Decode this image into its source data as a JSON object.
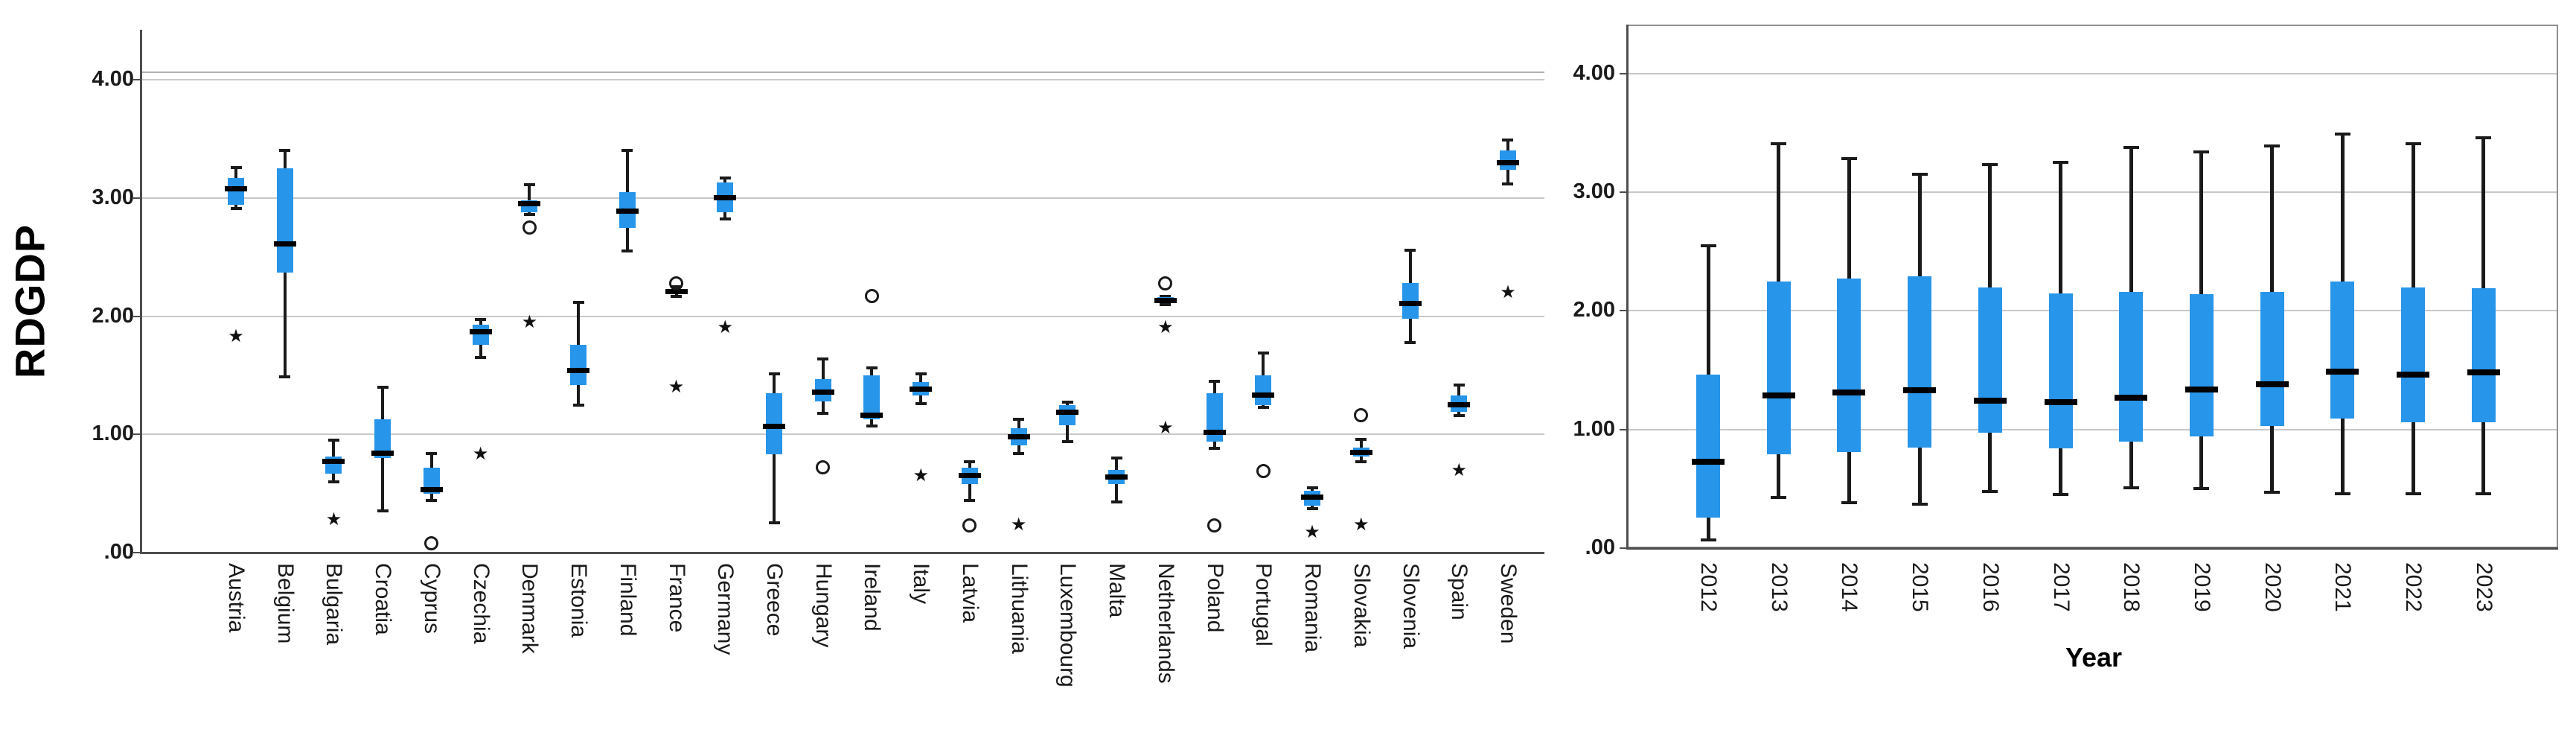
{
  "page": {
    "background": "#ffffff"
  },
  "colors": {
    "box_fill": "#2795e9",
    "median": "#000000",
    "whisker": "#1a1a1a",
    "gridline": "#c8c8c8",
    "axis": "#4d4d4d",
    "frame": "#909090",
    "text": "#000000"
  },
  "markers": {
    "outlier_icon": "circle-outline-icon",
    "extreme_icon": "star-icon",
    "extreme_glyph": "★"
  },
  "chart_data": [
    {
      "type": "boxplot",
      "title": "",
      "xlabel": "",
      "ylabel": "RDGDP",
      "ylim": [
        0,
        4.45
      ],
      "grid": true,
      "legend": "none",
      "yticks": [
        {
          "v": 0.0,
          "label": ".00"
        },
        {
          "v": 1.0,
          "label": "1.00"
        },
        {
          "v": 2.0,
          "label": "2.00"
        },
        {
          "v": 3.0,
          "label": "3.00"
        },
        {
          "v": 4.0,
          "label": "4.00"
        }
      ],
      "categories": [
        "Austria",
        "Belgium",
        "Bulgaria",
        "Croatia",
        "Cyprus",
        "Czechia",
        "Denmark",
        "Estonia",
        "Finland",
        "France",
        "Germany",
        "Greece",
        "Hungary",
        "Ireland",
        "Italy",
        "Latvia",
        "Lithuania",
        "Luxembourg",
        "Malta",
        "Netherlands",
        "Poland",
        "Portugal",
        "Romania",
        "Slovakia",
        "Slovenia",
        "Spain",
        "Sweden"
      ],
      "boxes": [
        {
          "category": "Austria",
          "whisker_low": 2.91,
          "q1": 2.94,
          "median": 3.08,
          "q3": 3.17,
          "whisker_high": 3.26,
          "outliers": [],
          "extremes": [
            1.83
          ]
        },
        {
          "category": "Belgium",
          "whisker_low": 1.49,
          "q1": 2.37,
          "median": 2.61,
          "q3": 3.25,
          "whisker_high": 3.4,
          "outliers": [],
          "extremes": []
        },
        {
          "category": "Bulgaria",
          "whisker_low": 0.6,
          "q1": 0.67,
          "median": 0.77,
          "q3": 0.81,
          "whisker_high": 0.95,
          "outliers": [],
          "extremes": [
            0.28
          ]
        },
        {
          "category": "Croatia",
          "whisker_low": 0.35,
          "q1": 0.8,
          "median": 0.84,
          "q3": 1.13,
          "whisker_high": 1.4,
          "outliers": [],
          "extremes": []
        },
        {
          "category": "Cyprus",
          "whisker_low": 0.44,
          "q1": 0.5,
          "median": 0.53,
          "q3": 0.72,
          "whisker_high": 0.84,
          "outliers": [
            0.08
          ],
          "extremes": []
        },
        {
          "category": "Czechia",
          "whisker_low": 1.65,
          "q1": 1.76,
          "median": 1.87,
          "q3": 1.93,
          "whisker_high": 1.97,
          "outliers": [],
          "extremes": [
            0.83
          ]
        },
        {
          "category": "Denmark",
          "whisker_low": 2.86,
          "q1": 2.88,
          "median": 2.95,
          "q3": 2.98,
          "whisker_high": 3.11,
          "outliers": [
            2.75
          ],
          "extremes": [
            1.95
          ]
        },
        {
          "category": "Estonia",
          "whisker_low": 1.25,
          "q1": 1.42,
          "median": 1.54,
          "q3": 1.76,
          "whisker_high": 2.12,
          "outliers": [],
          "extremes": []
        },
        {
          "category": "Finland",
          "whisker_low": 2.55,
          "q1": 2.75,
          "median": 2.89,
          "q3": 3.05,
          "whisker_high": 3.4,
          "outliers": [],
          "extremes": []
        },
        {
          "category": "France",
          "whisker_low": 2.17,
          "q1": 2.19,
          "median": 2.21,
          "q3": 2.23,
          "whisker_high": 2.25,
          "outliers": [
            2.28
          ],
          "extremes": [
            1.4
          ]
        },
        {
          "category": "Germany",
          "whisker_low": 2.82,
          "q1": 2.88,
          "median": 3.0,
          "q3": 3.13,
          "whisker_high": 3.17,
          "outliers": [],
          "extremes": [
            1.9
          ]
        },
        {
          "category": "Greece",
          "whisker_low": 0.25,
          "q1": 0.83,
          "median": 1.07,
          "q3": 1.35,
          "whisker_high": 1.51,
          "outliers": [],
          "extremes": []
        },
        {
          "category": "Hungary",
          "whisker_low": 1.18,
          "q1": 1.28,
          "median": 1.36,
          "q3": 1.47,
          "whisker_high": 1.64,
          "outliers": [
            0.72
          ],
          "extremes": []
        },
        {
          "category": "Ireland",
          "whisker_low": 1.07,
          "q1": 1.13,
          "median": 1.16,
          "q3": 1.5,
          "whisker_high": 1.56,
          "outliers": [
            2.17
          ],
          "extremes": []
        },
        {
          "category": "Italy",
          "whisker_low": 1.26,
          "q1": 1.33,
          "median": 1.38,
          "q3": 1.44,
          "whisker_high": 1.51,
          "outliers": [],
          "extremes": [
            0.65
          ]
        },
        {
          "category": "Latvia",
          "whisker_low": 0.44,
          "q1": 0.58,
          "median": 0.65,
          "q3": 0.72,
          "whisker_high": 0.77,
          "outliers": [
            0.23
          ],
          "extremes": []
        },
        {
          "category": "Lithuania",
          "whisker_low": 0.84,
          "q1": 0.91,
          "median": 0.98,
          "q3": 1.05,
          "whisker_high": 1.13,
          "outliers": [],
          "extremes": [
            0.23
          ]
        },
        {
          "category": "Luxembourg",
          "whisker_low": 0.94,
          "q1": 1.08,
          "median": 1.19,
          "q3": 1.25,
          "whisker_high": 1.27,
          "outliers": [],
          "extremes": []
        },
        {
          "category": "Malta",
          "whisker_low": 0.43,
          "q1": 0.58,
          "median": 0.64,
          "q3": 0.7,
          "whisker_high": 0.8,
          "outliers": [],
          "extremes": []
        },
        {
          "category": "Netherlands",
          "whisker_low": 2.1,
          "q1": 2.11,
          "median": 2.13,
          "q3": 2.16,
          "whisker_high": 2.17,
          "outliers": [
            2.28
          ],
          "extremes": [
            1.9,
            1.05
          ]
        },
        {
          "category": "Poland",
          "whisker_low": 0.88,
          "q1": 0.94,
          "median": 1.02,
          "q3": 1.35,
          "whisker_high": 1.45,
          "outliers": [
            0.23
          ],
          "extremes": []
        },
        {
          "category": "Portugal",
          "whisker_low": 1.23,
          "q1": 1.25,
          "median": 1.33,
          "q3": 1.5,
          "whisker_high": 1.69,
          "outliers": [
            0.69
          ],
          "extremes": []
        },
        {
          "category": "Romania",
          "whisker_low": 0.37,
          "q1": 0.4,
          "median": 0.47,
          "q3": 0.52,
          "whisker_high": 0.55,
          "outliers": [],
          "extremes": [
            0.17
          ]
        },
        {
          "category": "Slovakia",
          "whisker_low": 0.77,
          "q1": 0.81,
          "median": 0.85,
          "q3": 0.89,
          "whisker_high": 0.96,
          "outliers": [
            1.16
          ],
          "extremes": [
            0.23
          ]
        },
        {
          "category": "Slovenia",
          "whisker_low": 1.78,
          "q1": 1.98,
          "median": 2.11,
          "q3": 2.28,
          "whisker_high": 2.56,
          "outliers": [],
          "extremes": []
        },
        {
          "category": "Spain",
          "whisker_low": 1.16,
          "q1": 1.19,
          "median": 1.25,
          "q3": 1.33,
          "whisker_high": 1.42,
          "outliers": [],
          "extremes": [
            0.69
          ]
        },
        {
          "category": "Sweden",
          "whisker_low": 3.12,
          "q1": 3.24,
          "median": 3.3,
          "q3": 3.4,
          "whisker_high": 3.49,
          "outliers": [],
          "extremes": [
            2.2
          ]
        }
      ]
    },
    {
      "type": "boxplot",
      "title": "",
      "xlabel": "Year",
      "ylabel": "",
      "ylim": [
        0,
        4.42
      ],
      "grid": true,
      "legend": "none",
      "yticks": [
        {
          "v": 0.0,
          "label": ".00"
        },
        {
          "v": 1.0,
          "label": "1.00"
        },
        {
          "v": 2.0,
          "label": "2.00"
        },
        {
          "v": 3.0,
          "label": "3.00"
        },
        {
          "v": 4.0,
          "label": "4.00"
        }
      ],
      "categories": [
        "2012",
        "2013",
        "2014",
        "2015",
        "2016",
        "2017",
        "2018",
        "2019",
        "2020",
        "2021",
        "2022",
        "2023"
      ],
      "boxes": [
        {
          "category": "2012",
          "whisker_low": 0.07,
          "q1": 0.26,
          "median": 0.73,
          "q3": 1.46,
          "whisker_high": 2.55,
          "outliers": [],
          "extremes": []
        },
        {
          "category": "2013",
          "whisker_low": 0.43,
          "q1": 0.79,
          "median": 1.29,
          "q3": 2.25,
          "whisker_high": 3.41,
          "outliers": [],
          "extremes": []
        },
        {
          "category": "2014",
          "whisker_low": 0.38,
          "q1": 0.81,
          "median": 1.31,
          "q3": 2.27,
          "whisker_high": 3.28,
          "outliers": [],
          "extremes": []
        },
        {
          "category": "2015",
          "whisker_low": 0.37,
          "q1": 0.85,
          "median": 1.33,
          "q3": 2.29,
          "whisker_high": 3.15,
          "outliers": [],
          "extremes": []
        },
        {
          "category": "2016",
          "whisker_low": 0.48,
          "q1": 0.97,
          "median": 1.24,
          "q3": 2.2,
          "whisker_high": 3.23,
          "outliers": [],
          "extremes": []
        },
        {
          "category": "2017",
          "whisker_low": 0.45,
          "q1": 0.84,
          "median": 1.23,
          "q3": 2.15,
          "whisker_high": 3.25,
          "outliers": [],
          "extremes": []
        },
        {
          "category": "2018",
          "whisker_low": 0.51,
          "q1": 0.9,
          "median": 1.27,
          "q3": 2.16,
          "whisker_high": 3.38,
          "outliers": [],
          "extremes": []
        },
        {
          "category": "2019",
          "whisker_low": 0.5,
          "q1": 0.94,
          "median": 1.34,
          "q3": 2.14,
          "whisker_high": 3.34,
          "outliers": [],
          "extremes": []
        },
        {
          "category": "2020",
          "whisker_low": 0.47,
          "q1": 1.03,
          "median": 1.38,
          "q3": 2.16,
          "whisker_high": 3.39,
          "outliers": [],
          "extremes": []
        },
        {
          "category": "2021",
          "whisker_low": 0.46,
          "q1": 1.09,
          "median": 1.49,
          "q3": 2.25,
          "whisker_high": 3.49,
          "outliers": [],
          "extremes": []
        },
        {
          "category": "2022",
          "whisker_low": 0.46,
          "q1": 1.06,
          "median": 1.46,
          "q3": 2.2,
          "whisker_high": 3.41,
          "outliers": [],
          "extremes": []
        },
        {
          "category": "2023",
          "whisker_low": 0.46,
          "q1": 1.06,
          "median": 1.48,
          "q3": 2.19,
          "whisker_high": 3.46,
          "outliers": [],
          "extremes": []
        }
      ]
    }
  ]
}
